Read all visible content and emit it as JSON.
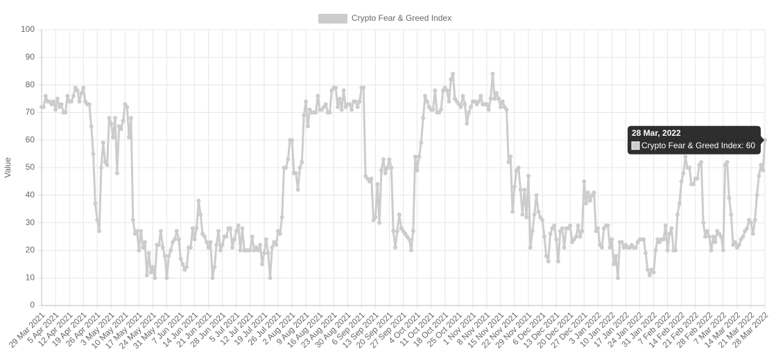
{
  "chart_data": {
    "type": "line",
    "y_label": "Value",
    "ylim": [
      0,
      100
    ],
    "yticks": [
      0,
      10,
      20,
      30,
      40,
      50,
      60,
      70,
      80,
      90,
      100
    ],
    "grid": true,
    "legend": "top",
    "categories": [
      "29 Mar 2021",
      null,
      null,
      null,
      null,
      null,
      null,
      "5 Apr 2021",
      null,
      null,
      null,
      null,
      null,
      null,
      "12 Apr 2021",
      null,
      null,
      null,
      null,
      null,
      null,
      "19 Apr 2021",
      null,
      null,
      null,
      null,
      null,
      null,
      "26 Apr 2021",
      null,
      null,
      null,
      null,
      null,
      null,
      "3 May 2021",
      null,
      null,
      null,
      null,
      null,
      null,
      "10 May 2021",
      null,
      null,
      null,
      null,
      null,
      null,
      "17 May 2021",
      null,
      null,
      null,
      null,
      null,
      null,
      "24 May 2021",
      null,
      null,
      null,
      null,
      null,
      null,
      "31 May 2021",
      null,
      null,
      null,
      null,
      null,
      null,
      "7 Jun 2021",
      null,
      null,
      null,
      null,
      null,
      null,
      "14 Jun 2021",
      null,
      null,
      null,
      null,
      null,
      null,
      "21 Jun 2021",
      null,
      null,
      null,
      null,
      null,
      null,
      "28 Jun 2021",
      null,
      null,
      null,
      null,
      null,
      null,
      "5 Jul 2021",
      null,
      null,
      null,
      null,
      null,
      null,
      "12 Jul 2021",
      null,
      null,
      null,
      null,
      null,
      null,
      "19 Jul 2021",
      null,
      null,
      null,
      null,
      null,
      null,
      "26 Jul 2021",
      null,
      null,
      null,
      null,
      null,
      null,
      "2 Aug 2021",
      null,
      null,
      null,
      null,
      null,
      null,
      "9 Aug 2021",
      null,
      null,
      null,
      null,
      null,
      null,
      "16 Aug 2021",
      null,
      null,
      null,
      null,
      null,
      null,
      "23 Aug 2021",
      null,
      null,
      null,
      null,
      null,
      null,
      "30 Aug 2021",
      null,
      null,
      null,
      null,
      null,
      null,
      "6 Sep 2021",
      null,
      null,
      null,
      null,
      null,
      null,
      "13 Sep 2021",
      null,
      null,
      null,
      null,
      null,
      null,
      "20 Sep 2021",
      null,
      null,
      null,
      null,
      null,
      null,
      "27 Sep 2021",
      null,
      null,
      null,
      null,
      null,
      null,
      "4 Oct 2021",
      null,
      null,
      null,
      null,
      null,
      null,
      "11 Oct 2021",
      null,
      null,
      null,
      null,
      null,
      null,
      "18 Oct 2021",
      null,
      null,
      null,
      null,
      null,
      null,
      "25 Oct 2021",
      null,
      null,
      null,
      null,
      null,
      null,
      "1 Nov 2021",
      null,
      null,
      null,
      null,
      null,
      null,
      "8 Nov 2021",
      null,
      null,
      null,
      null,
      null,
      null,
      "15 Nov 2021",
      null,
      null,
      null,
      null,
      null,
      null,
      "22 Nov 2021",
      null,
      null,
      null,
      null,
      null,
      null,
      "29 Nov 2021",
      null,
      null,
      null,
      null,
      null,
      null,
      "6 Dec 2021",
      null,
      null,
      null,
      null,
      null,
      null,
      "13 Dec 2021",
      null,
      null,
      null,
      null,
      null,
      null,
      "20 Dec 2021",
      null,
      null,
      null,
      null,
      null,
      null,
      "27 Dec 2021",
      null,
      null,
      null,
      null,
      null,
      null,
      "3 Jan 2022",
      null,
      null,
      null,
      null,
      null,
      null,
      "10 Jan 2022",
      null,
      null,
      null,
      null,
      null,
      null,
      "17 Jan 2022",
      null,
      null,
      null,
      null,
      null,
      null,
      "24 Jan 2022",
      null,
      null,
      null,
      null,
      null,
      null,
      "31 Jan 2022",
      null,
      null,
      null,
      null,
      null,
      null,
      "7 Feb 2022",
      null,
      null,
      null,
      null,
      null,
      null,
      "14 Feb 2022",
      null,
      null,
      null,
      null,
      null,
      null,
      "21 Feb 2022",
      null,
      null,
      null,
      null,
      null,
      null,
      "28 Feb 2022",
      null,
      null,
      null,
      null,
      null,
      null,
      "7 Mar 2022",
      null,
      null,
      null,
      null,
      null,
      null,
      "14 Mar 2022",
      null,
      null,
      null,
      null,
      null,
      null,
      "21 Mar 2022",
      null,
      null,
      null,
      null,
      null,
      null,
      "28 Mar 2022"
    ],
    "series": [
      {
        "name": "Crypto Fear & Greed Index",
        "color": "#cccccc",
        "values": [
          72,
          72,
          76,
          74,
          74,
          73,
          74,
          71,
          75,
          72,
          73,
          70,
          70,
          76,
          74,
          74,
          76,
          79,
          78,
          74,
          77,
          79,
          74,
          73,
          73,
          65,
          55,
          37,
          31,
          27,
          50,
          59,
          52,
          51,
          68,
          66,
          61,
          68,
          48,
          65,
          64,
          67,
          73,
          72,
          61,
          68,
          31,
          26,
          27,
          20,
          27,
          21,
          23,
          11,
          19,
          12,
          14,
          10,
          22,
          22,
          27,
          21,
          18,
          10,
          18,
          20,
          23,
          24,
          27,
          24,
          17,
          15,
          13,
          14,
          21,
          21,
          28,
          24,
          28,
          38,
          33,
          26,
          25,
          23,
          21,
          23,
          10,
          14,
          22,
          27,
          20,
          22,
          25,
          25,
          28,
          28,
          21,
          24,
          27,
          29,
          20,
          28,
          20,
          20,
          20,
          20,
          25,
          20,
          21,
          20,
          22,
          15,
          19,
          24,
          19,
          10,
          21,
          23,
          22,
          27,
          26,
          32,
          50,
          50,
          53,
          60,
          60,
          48,
          48,
          42,
          50,
          52,
          69,
          74,
          65,
          71,
          70,
          70,
          70,
          76,
          71,
          71,
          72,
          73,
          70,
          70,
          78,
          79,
          79,
          72,
          75,
          71,
          78,
          72,
          73,
          73,
          71,
          74,
          74,
          72,
          74,
          79,
          79,
          47,
          46,
          45,
          46,
          31,
          32,
          44,
          30,
          49,
          53,
          48,
          50,
          53,
          50,
          27,
          21,
          27,
          33,
          28,
          27,
          26,
          25,
          24,
          20,
          27,
          54,
          49,
          54,
          59,
          68,
          76,
          74,
          72,
          71,
          71,
          78,
          70,
          70,
          71,
          78,
          79,
          78,
          74,
          82,
          84,
          75,
          74,
          73,
          72,
          76,
          73,
          66,
          70,
          72,
          74,
          74,
          73,
          74,
          76,
          73,
          73,
          73,
          71,
          75,
          84,
          75,
          77,
          75,
          72,
          74,
          72,
          71,
          52,
          54,
          34,
          43,
          49,
          50,
          42,
          33,
          42,
          32,
          47,
          21,
          27,
          33,
          40,
          34,
          32,
          31,
          25,
          18,
          16,
          26,
          28,
          29,
          24,
          16,
          27,
          28,
          21,
          28,
          28,
          29,
          23,
          24,
          25,
          29,
          25,
          27,
          45,
          37,
          41,
          38,
          40,
          41,
          27,
          28,
          22,
          21,
          28,
          29,
          29,
          21,
          24,
          15,
          18,
          10,
          23,
          23,
          21,
          22,
          21,
          21,
          22,
          21,
          21,
          23,
          24,
          24,
          24,
          19,
          13,
          11,
          13,
          12,
          20,
          24,
          23,
          24,
          24,
          29,
          20,
          26,
          28,
          20,
          20,
          33,
          37,
          45,
          48,
          54,
          50,
          50,
          44,
          44,
          46,
          46,
          51,
          52,
          30,
          25,
          27,
          25,
          20,
          25,
          23,
          27,
          26,
          25,
          20,
          51,
          52,
          39,
          33,
          22,
          23,
          21,
          22,
          24,
          25,
          27,
          28,
          31,
          30,
          26,
          31,
          40,
          47,
          51,
          49,
          60
        ]
      }
    ],
    "tooltip": {
      "title": "28 Mar, 2022",
      "label": "Crypto Fear & Greed Index: 60"
    }
  }
}
